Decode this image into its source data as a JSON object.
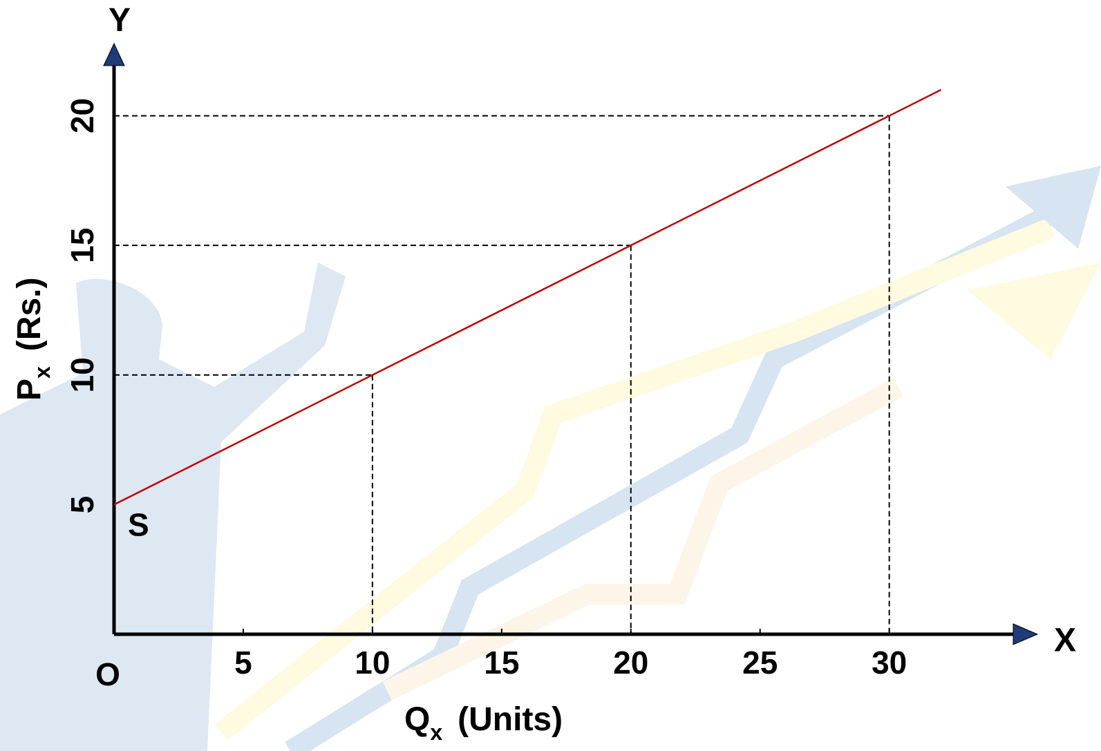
{
  "chart_data": {
    "type": "line",
    "y_axis_name": "Y",
    "x_axis_name": "X",
    "origin_label": "O",
    "x_label": {
      "main": "Q",
      "sub": "x",
      "unit": "(Units)"
    },
    "y_label": {
      "main": "P",
      "sub": "x",
      "unit": "(Rs.)"
    },
    "x": [
      0,
      10,
      20,
      30,
      32
    ],
    "series": [
      {
        "name": "S",
        "color": "#c00000",
        "values": [
          5,
          10,
          15,
          20,
          21
        ]
      }
    ],
    "xlim": [
      0,
      36
    ],
    "ylim": [
      0,
      23
    ],
    "xticks": [
      5,
      10,
      15,
      20,
      25,
      30
    ],
    "yticks": [
      5,
      10,
      15,
      20
    ],
    "grid": false
  }
}
